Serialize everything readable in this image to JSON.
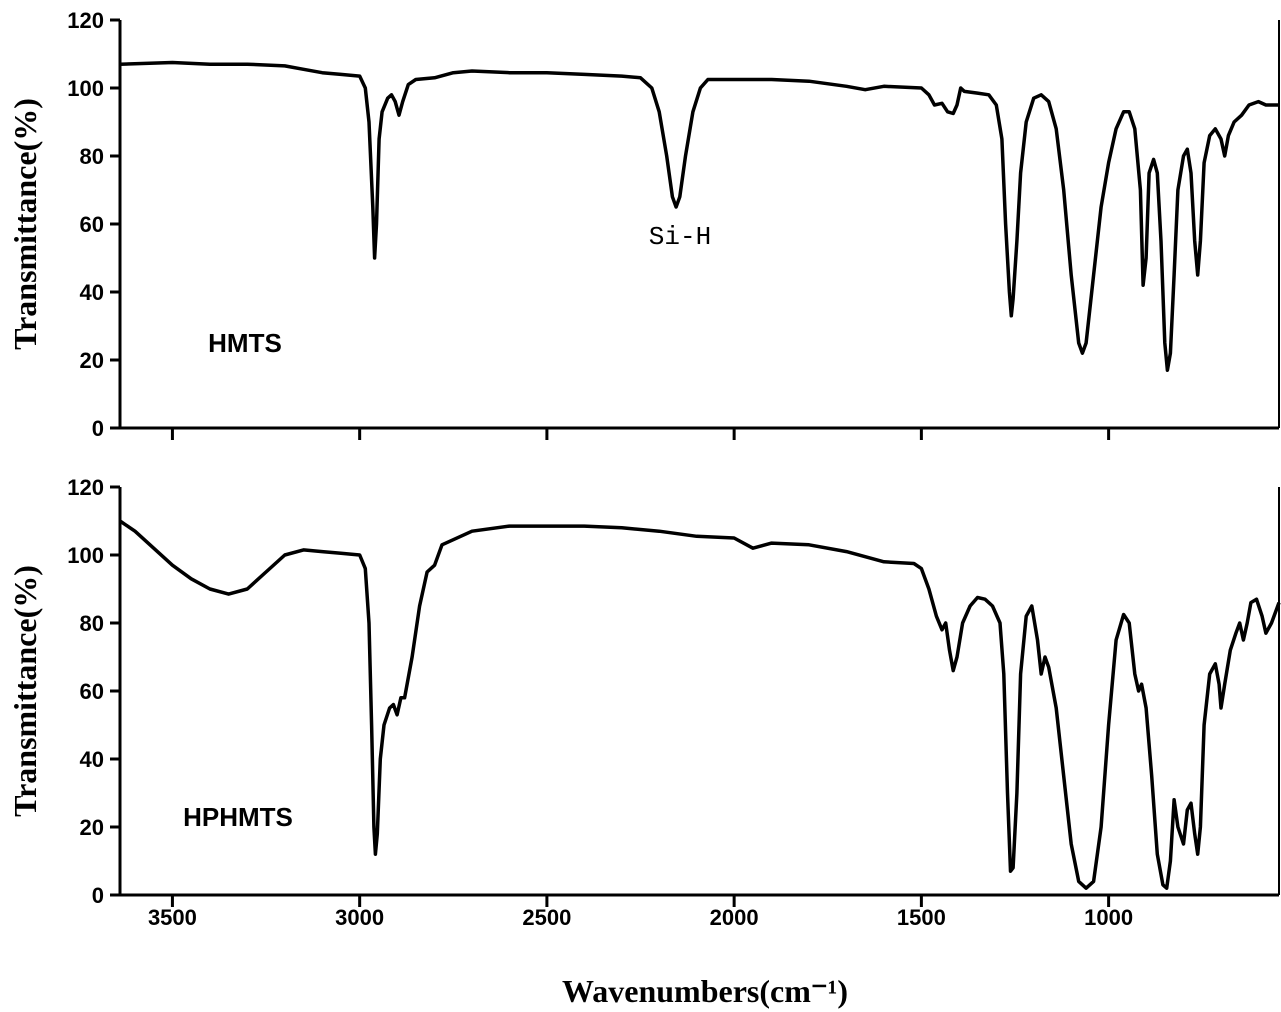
{
  "chart_data": [
    {
      "type": "line",
      "ylabel": "Transmittance(%)",
      "annotations": [
        "Si-H",
        "HMTS"
      ],
      "color": "#000000",
      "xlim": [
        3640,
        545
      ],
      "xticks": [
        3500,
        3000,
        2500,
        2000,
        1500,
        1000
      ],
      "ylim": [
        0,
        120
      ],
      "yticks": [
        0,
        20,
        40,
        60,
        80,
        100,
        120
      ],
      "x": [
        3640,
        3500,
        3400,
        3300,
        3200,
        3150,
        3100,
        3050,
        3000,
        2985,
        2975,
        2965,
        2960,
        2955,
        2948,
        2940,
        2925,
        2915,
        2905,
        2895,
        2885,
        2870,
        2850,
        2800,
        2750,
        2700,
        2600,
        2500,
        2400,
        2300,
        2250,
        2220,
        2200,
        2180,
        2165,
        2155,
        2145,
        2130,
        2110,
        2090,
        2070,
        2000,
        1900,
        1800,
        1700,
        1650,
        1600,
        1500,
        1480,
        1465,
        1445,
        1430,
        1415,
        1405,
        1395,
        1385,
        1350,
        1320,
        1300,
        1285,
        1275,
        1265,
        1260,
        1255,
        1245,
        1235,
        1220,
        1200,
        1180,
        1160,
        1140,
        1120,
        1100,
        1080,
        1070,
        1060,
        1040,
        1020,
        1000,
        980,
        960,
        945,
        930,
        915,
        908,
        900,
        892,
        880,
        870,
        860,
        850,
        843,
        835,
        825,
        815,
        800,
        790,
        780,
        770,
        762,
        755,
        745,
        730,
        715,
        700,
        690,
        680,
        665,
        645,
        625,
        600,
        580,
        545
      ],
      "values": [
        107,
        107.5,
        107,
        107,
        106.5,
        105.5,
        104.5,
        104,
        103.5,
        100,
        90,
        65,
        50,
        60,
        85,
        93,
        97,
        98,
        96,
        92,
        96,
        101,
        102.5,
        103,
        104.5,
        105,
        104.5,
        104.5,
        104,
        103.5,
        103,
        100,
        93,
        80,
        68,
        65,
        68,
        80,
        93,
        100,
        102.5,
        102.5,
        102.5,
        102,
        100.5,
        99.5,
        100.5,
        100,
        98,
        95,
        95.5,
        93,
        92.5,
        95,
        100,
        99,
        98.5,
        98,
        95,
        85,
        60,
        40,
        33,
        38,
        55,
        75,
        90,
        97,
        98,
        96,
        88,
        70,
        45,
        25,
        22,
        25,
        45,
        65,
        78,
        88,
        93,
        93,
        88,
        70,
        42,
        50,
        75,
        79,
        75,
        55,
        25,
        17,
        22,
        45,
        70,
        80,
        82,
        75,
        55,
        45,
        55,
        78,
        86,
        88,
        85,
        80,
        86,
        90,
        92,
        95,
        96,
        95,
        95
      ]
    },
    {
      "type": "line",
      "ylabel": "Transmittance(%)",
      "xlabel": "Wavenumbers(cm⁻¹)",
      "annotations": [
        "HPHMTS"
      ],
      "color": "#000000",
      "xlim": [
        3640,
        545
      ],
      "xticks": [
        3500,
        3000,
        2500,
        2000,
        1500,
        1000
      ],
      "ylim": [
        0,
        120
      ],
      "yticks": [
        0,
        20,
        40,
        60,
        80,
        100,
        120
      ],
      "x": [
        3640,
        3600,
        3550,
        3500,
        3450,
        3400,
        3350,
        3300,
        3250,
        3200,
        3150,
        3100,
        3050,
        3000,
        2985,
        2975,
        2968,
        2962,
        2958,
        2953,
        2945,
        2935,
        2920,
        2910,
        2900,
        2890,
        2880,
        2860,
        2840,
        2820,
        2800,
        2780,
        2750,
        2700,
        2600,
        2500,
        2400,
        2300,
        2200,
        2100,
        2000,
        1950,
        1900,
        1800,
        1700,
        1600,
        1520,
        1500,
        1480,
        1460,
        1445,
        1435,
        1425,
        1415,
        1405,
        1390,
        1370,
        1350,
        1330,
        1310,
        1290,
        1280,
        1270,
        1262,
        1255,
        1245,
        1235,
        1220,
        1205,
        1190,
        1180,
        1170,
        1160,
        1140,
        1120,
        1100,
        1080,
        1060,
        1040,
        1020,
        1000,
        980,
        960,
        945,
        930,
        920,
        912,
        900,
        885,
        870,
        855,
        845,
        835,
        825,
        815,
        800,
        790,
        780,
        770,
        762,
        755,
        745,
        730,
        715,
        705,
        700,
        690,
        675,
        660,
        650,
        640,
        630,
        620,
        605,
        590,
        580,
        565,
        545
      ],
      "values": [
        110,
        107,
        102,
        97,
        93,
        90,
        88.5,
        90,
        95,
        100,
        101.5,
        101,
        100.5,
        100,
        96,
        80,
        50,
        20,
        12,
        18,
        40,
        50,
        55,
        56,
        53,
        58,
        58,
        70,
        85,
        95,
        97,
        103,
        104.5,
        107,
        108.5,
        108.5,
        108.5,
        108,
        107,
        105.5,
        105,
        102,
        103.5,
        103,
        101,
        98,
        97.5,
        96,
        90,
        82,
        78,
        80,
        72,
        66,
        70,
        80,
        85,
        87.5,
        87,
        85,
        80,
        65,
        30,
        7,
        8,
        30,
        65,
        82,
        85,
        75,
        65,
        70,
        67,
        55,
        35,
        15,
        4,
        2,
        4,
        20,
        50,
        75,
        82.5,
        80,
        65,
        60,
        62,
        55,
        35,
        12,
        3,
        2,
        10,
        28,
        20,
        15,
        25,
        27,
        18,
        12,
        20,
        50,
        65,
        68,
        62,
        55,
        62,
        72,
        77,
        80,
        75,
        80,
        86,
        87,
        82,
        77,
        80,
        86
      ]
    }
  ]
}
